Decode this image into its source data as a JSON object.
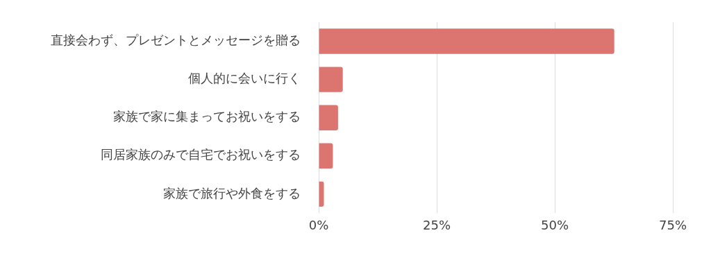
{
  "chart_data": {
    "type": "bar",
    "orientation": "horizontal",
    "categories": [
      "直接会わず、プレゼントとメッセージを贈る",
      "個人的に会いに行く",
      "家族で家に集まってお祝いをする",
      "同居家族のみで自宅でお祝いをする",
      "家族で旅行や外食をする"
    ],
    "values": [
      62.6,
      5.1,
      4.1,
      3.0,
      1.1
    ],
    "color": "#dc7470",
    "xlim": [
      0,
      75
    ],
    "xticks": [
      {
        "value": 0,
        "label": "0%"
      },
      {
        "value": 25,
        "label": "25%"
      },
      {
        "value": 50,
        "label": "50%"
      },
      {
        "value": 75,
        "label": "75%"
      }
    ],
    "grid": "x",
    "legend": false
  }
}
